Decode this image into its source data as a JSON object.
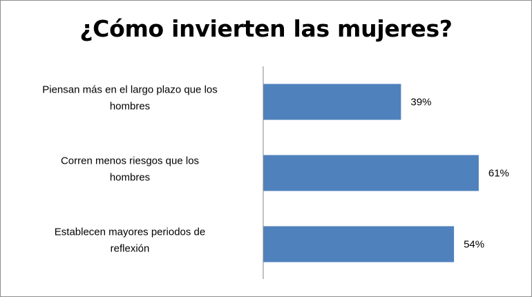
{
  "chart_data": {
    "type": "bar",
    "orientation": "horizontal",
    "title": "¿Cómo invierten las mujeres?",
    "categories": [
      [
        "Piensan más en el largo plazo que los",
        "hombres"
      ],
      [
        "Corren menos riesgos que los",
        "hombres"
      ],
      [
        "Establecen mayores periodos de",
        "reflexión"
      ]
    ],
    "values": [
      39,
      61,
      54
    ],
    "value_labels": [
      "39%",
      "61%",
      "54%"
    ],
    "xlim": [
      0,
      62
    ],
    "grid": false,
    "legend": "none",
    "bar_color": "#4f81bd",
    "axis_color": "#868686"
  }
}
